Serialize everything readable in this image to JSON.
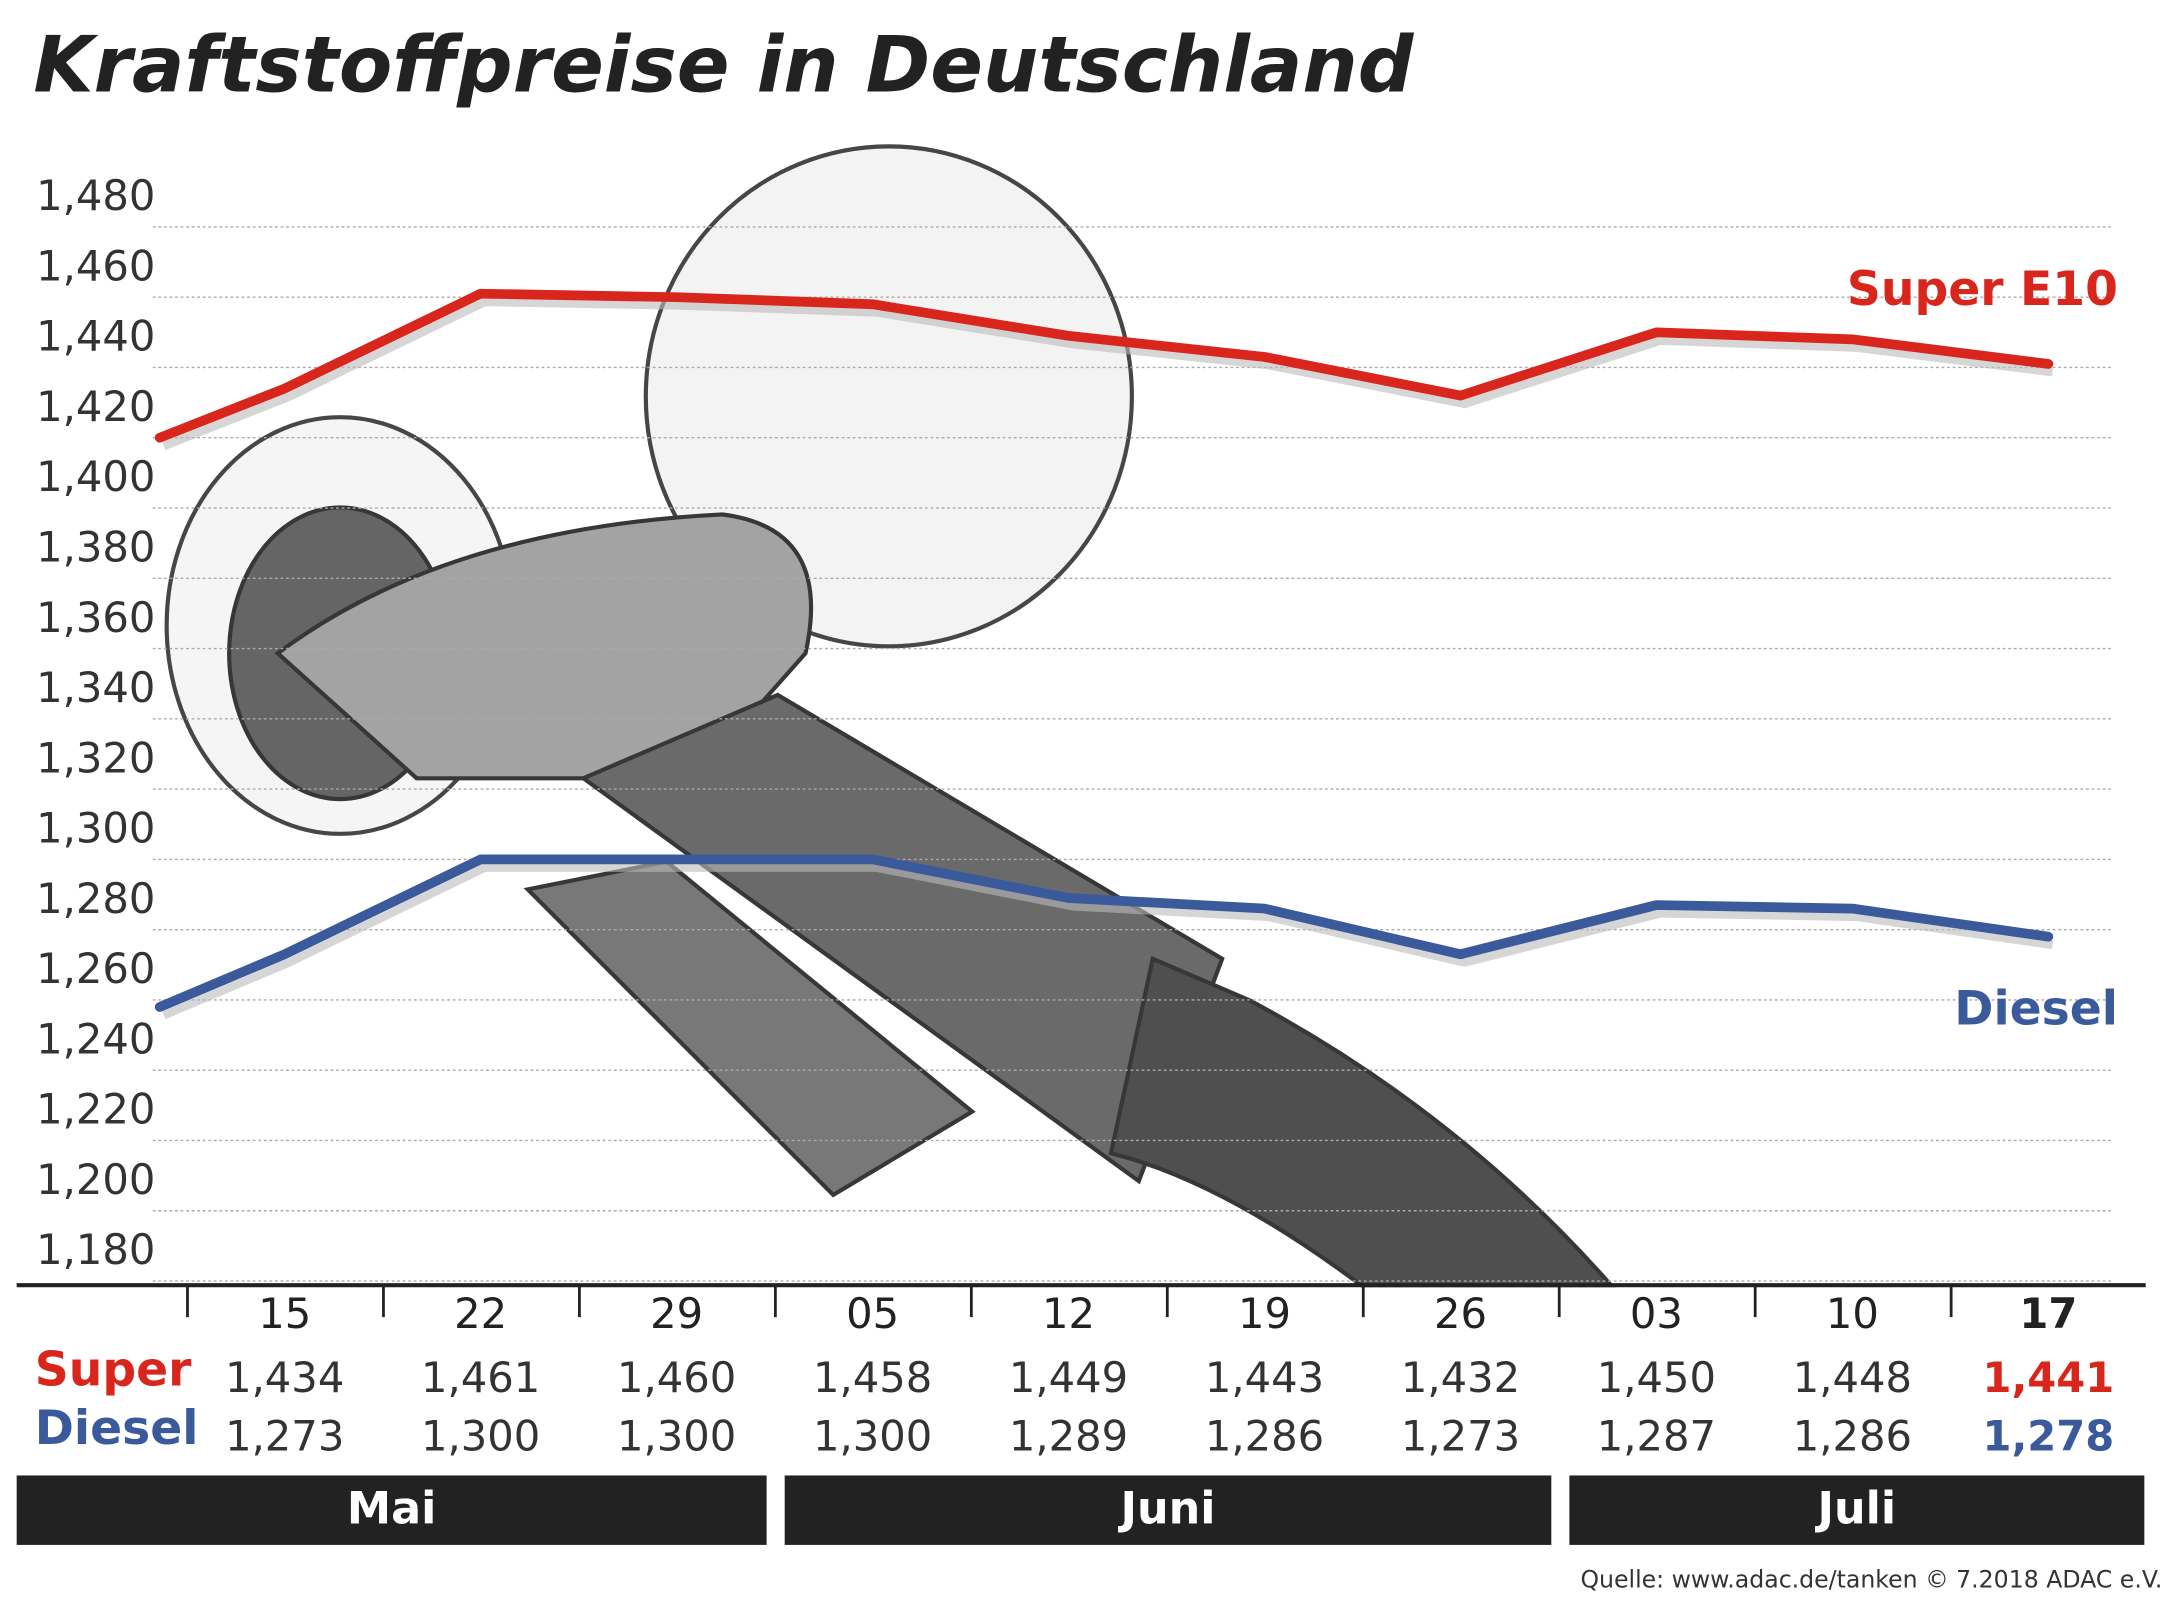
{
  "chart_data": {
    "type": "line",
    "title": "Kraftstoffpreise in Deutschland",
    "categories": [
      null,
      "15",
      "22",
      "29",
      "05",
      "12",
      "19",
      "26",
      "03",
      "10",
      "17"
    ],
    "series": [
      {
        "name": "Super E10",
        "color": "#d9261c",
        "values": [
          1420,
          1434,
          1461,
          1460,
          1458,
          1449,
          1443,
          1432,
          1450,
          1448,
          1441
        ],
        "value_labels": [
          null,
          "1,434",
          "1,461",
          "1,460",
          "1,458",
          "1,449",
          "1,443",
          "1,432",
          "1,450",
          "1,448",
          "1,441"
        ]
      },
      {
        "name": "Diesel",
        "color": "#3a5a9c",
        "values": [
          1258,
          1273,
          1300,
          1300,
          1300,
          1289,
          1286,
          1273,
          1287,
          1286,
          1278
        ],
        "value_labels": [
          null,
          "1,273",
          "1,300",
          "1,300",
          "1,300",
          "1,289",
          "1,286",
          "1,273",
          "1,287",
          "1,286",
          "1,278"
        ]
      }
    ],
    "row_labels": [
      "Super",
      "Diesel"
    ],
    "months": [
      "Mai",
      "Juni",
      "Juli"
    ],
    "ylim": [
      1180,
      1480
    ],
    "yticks": [
      {
        "value": 1180,
        "label": "1,180"
      },
      {
        "value": 1200,
        "label": "1,200"
      },
      {
        "value": 1220,
        "label": "1,220"
      },
      {
        "value": 1240,
        "label": "1,240"
      },
      {
        "value": 1260,
        "label": "1,260"
      },
      {
        "value": 1280,
        "label": "1,280"
      },
      {
        "value": 1300,
        "label": "1,300"
      },
      {
        "value": 1320,
        "label": "1,320"
      },
      {
        "value": 1340,
        "label": "1,340"
      },
      {
        "value": 1360,
        "label": "1,360"
      },
      {
        "value": 1380,
        "label": "1,380"
      },
      {
        "value": 1400,
        "label": "1,400"
      },
      {
        "value": 1420,
        "label": "1,420"
      },
      {
        "value": 1440,
        "label": "1,440"
      },
      {
        "value": 1460,
        "label": "1,460"
      },
      {
        "value": 1480,
        "label": "1,480"
      }
    ],
    "grid": true,
    "source": "Quelle: www.adac.de/tanken   © 7.2018  ADAC e.V."
  }
}
